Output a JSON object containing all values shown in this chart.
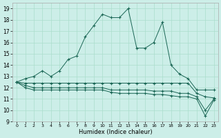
{
  "xlabel": "Humidex (Indice chaleur)",
  "bg_color": "#cceee8",
  "grid_color": "#aaddcc",
  "line_color": "#1a6655",
  "xlim": [
    -0.5,
    23.5
  ],
  "ylim": [
    9,
    19.5
  ],
  "yticks": [
    9,
    10,
    11,
    12,
    13,
    14,
    15,
    16,
    17,
    18,
    19
  ],
  "xticks": [
    0,
    1,
    2,
    3,
    4,
    5,
    6,
    7,
    8,
    9,
    10,
    11,
    12,
    13,
    14,
    15,
    16,
    17,
    18,
    19,
    20,
    21,
    22,
    23
  ],
  "s1_x": [
    0,
    1,
    2,
    3,
    4,
    5,
    6,
    7,
    8,
    9,
    10,
    11,
    12,
    13,
    14,
    15,
    16,
    17,
    18,
    19,
    20,
    21,
    22,
    23
  ],
  "s1_y": [
    12.5,
    12.8,
    13.0,
    13.5,
    13.0,
    13.5,
    14.5,
    14.8,
    16.5,
    17.5,
    18.5,
    18.2,
    18.2,
    19.0,
    15.5,
    15.5,
    16.0,
    17.8,
    14.0,
    13.2,
    12.8,
    11.8,
    11.8,
    11.8
  ],
  "s2_x": [
    0,
    1,
    2,
    3,
    4,
    5,
    6,
    7,
    8,
    9,
    10,
    11,
    12,
    13,
    14,
    15,
    16,
    17,
    18,
    19,
    20,
    21,
    22,
    23
  ],
  "s2_y": [
    12.5,
    12.4,
    12.4,
    12.4,
    12.4,
    12.4,
    12.4,
    12.4,
    12.4,
    12.4,
    12.4,
    12.4,
    12.4,
    12.4,
    12.4,
    12.4,
    12.4,
    12.4,
    12.4,
    12.4,
    12.4,
    11.5,
    11.2,
    11.1
  ],
  "s3_x": [
    0,
    1,
    2,
    3,
    4,
    5,
    6,
    7,
    8,
    9,
    10,
    11,
    12,
    13,
    14,
    15,
    16,
    17,
    18,
    19,
    20,
    21,
    22,
    23
  ],
  "s3_y": [
    12.5,
    12.2,
    12.0,
    12.0,
    12.0,
    12.0,
    12.0,
    12.0,
    12.0,
    12.0,
    12.0,
    11.8,
    11.8,
    11.8,
    11.8,
    11.8,
    11.7,
    11.7,
    11.7,
    11.5,
    11.5,
    11.2,
    10.0,
    11.0
  ],
  "s4_x": [
    0,
    1,
    2,
    3,
    4,
    5,
    6,
    7,
    8,
    9,
    10,
    11,
    12,
    13,
    14,
    15,
    16,
    17,
    18,
    19,
    20,
    21,
    22,
    23
  ],
  "s4_y": [
    12.5,
    12.0,
    11.8,
    11.8,
    11.8,
    11.8,
    11.8,
    11.8,
    11.8,
    11.8,
    11.8,
    11.6,
    11.5,
    11.5,
    11.5,
    11.5,
    11.4,
    11.4,
    11.3,
    11.2,
    11.2,
    11.0,
    9.5,
    10.9
  ]
}
